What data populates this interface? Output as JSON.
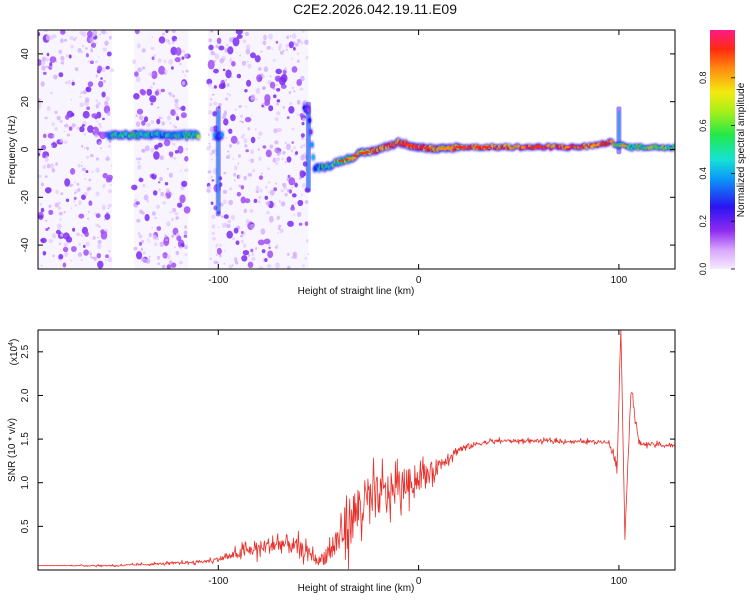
{
  "title": "C2E2.2026.042.19.11.E09",
  "colors": {
    "snr_line": "#e8302a",
    "axis": "#000000",
    "speckle": "#9a35f0",
    "speckle_light": "#d6b8ff"
  },
  "chart_data": [
    {
      "type": "heatmap",
      "name": "spectrogram",
      "xlabel": "Height of straight line (km)",
      "ylabel": "Frequency (Hz)",
      "xlim": [
        -190,
        128
      ],
      "ylim": [
        -50,
        50
      ],
      "x_ticks": [
        -100,
        0,
        100
      ],
      "y_ticks": [
        -40,
        -20,
        0,
        20,
        40
      ],
      "colorbar": {
        "label": "Normalized spectral amplitude",
        "ticks": [
          0.0,
          0.2,
          0.4,
          0.6,
          0.8
        ],
        "range": [
          0,
          1
        ]
      },
      "noise_bands_km": [
        [
          -190,
          -153
        ],
        [
          -142,
          -115
        ],
        [
          -105,
          -55
        ]
      ],
      "ridge": {
        "x": [
          -155,
          -140,
          -130,
          -120,
          -110,
          -103,
          -100,
          -90,
          -80,
          -70,
          -60,
          -55,
          -52,
          -45,
          -40,
          -35,
          -30,
          -20,
          -10,
          0,
          10,
          20,
          40,
          60,
          80,
          90,
          95,
          100,
          105,
          110,
          128
        ],
        "y": [
          6,
          6,
          6,
          6,
          6,
          5,
          6,
          7,
          10,
          14,
          17,
          17,
          -8,
          -7,
          -5,
          -4,
          -2,
          0,
          3,
          1,
          0,
          1,
          1,
          1,
          1,
          2,
          3,
          2,
          1,
          1,
          1
        ],
        "amplitude": [
          0.45,
          0.5,
          0.4,
          0.45,
          0.55,
          0.6,
          0.3,
          0.25,
          0.25,
          0.25,
          0.3,
          0.2,
          0.35,
          0.5,
          0.55,
          0.6,
          0.7,
          0.85,
          0.9,
          0.85,
          0.75,
          0.8,
          0.85,
          0.9,
          0.85,
          0.8,
          0.9,
          0.55,
          0.5,
          0.6,
          0.6
        ]
      },
      "feature_events": [
        {
          "x": -100,
          "y_range": [
            -28,
            18
          ]
        },
        {
          "x": -55,
          "y_range": [
            -18,
            20
          ]
        },
        {
          "x": 100,
          "y_range": [
            -2,
            18
          ]
        }
      ]
    },
    {
      "type": "line",
      "name": "snr",
      "xlabel": "Height of straight line (km)",
      "ylabel": "SNR (10 * v/v)",
      "multiplier_label": "(x10",
      "multiplier_exp": "4",
      "multiplier_close": ")",
      "xlim": [
        -190,
        128
      ],
      "ylim": [
        0,
        2.75
      ],
      "x_ticks": [
        -100,
        0,
        100
      ],
      "y_ticks": [
        0.5,
        1.0,
        1.5,
        2.0,
        2.5
      ],
      "y_tick_labels": [
        "0.5",
        "1.0",
        "1.5",
        "2.0",
        "2.5"
      ],
      "x_tick_labels": [
        "-100",
        "0",
        "100"
      ],
      "series": [
        {
          "name": "SNR",
          "x": [
            -190,
            -150,
            -120,
            -105,
            -95,
            -85,
            -75,
            -65,
            -55,
            -50,
            -45,
            -40,
            -35,
            -30,
            -25,
            -20,
            -15,
            -10,
            -5,
            0,
            5,
            10,
            15,
            20,
            30,
            40,
            60,
            80,
            95,
            99,
            101,
            103,
            106,
            110,
            128
          ],
          "y": [
            0.05,
            0.05,
            0.08,
            0.1,
            0.15,
            0.22,
            0.28,
            0.3,
            0.2,
            0.1,
            0.2,
            0.35,
            0.55,
            0.7,
            0.78,
            0.85,
            0.9,
            0.95,
            1.0,
            1.05,
            1.1,
            1.2,
            1.3,
            1.38,
            1.45,
            1.48,
            1.48,
            1.47,
            1.47,
            1.2,
            2.75,
            0.35,
            2.1,
            1.45,
            1.42
          ],
          "noise_envelope": [
            0.0,
            0.02,
            0.03,
            0.04,
            0.08,
            0.15,
            0.2,
            0.25,
            0.15,
            0.1,
            0.3,
            0.45,
            0.6,
            0.7,
            0.6,
            0.5,
            0.45,
            0.4,
            0.35,
            0.3,
            0.25,
            0.2,
            0.15,
            0.1,
            0.06,
            0.04,
            0.04,
            0.04,
            0.04,
            0.3,
            0.0,
            0.0,
            0.2,
            0.05,
            0.04
          ]
        }
      ]
    }
  ]
}
